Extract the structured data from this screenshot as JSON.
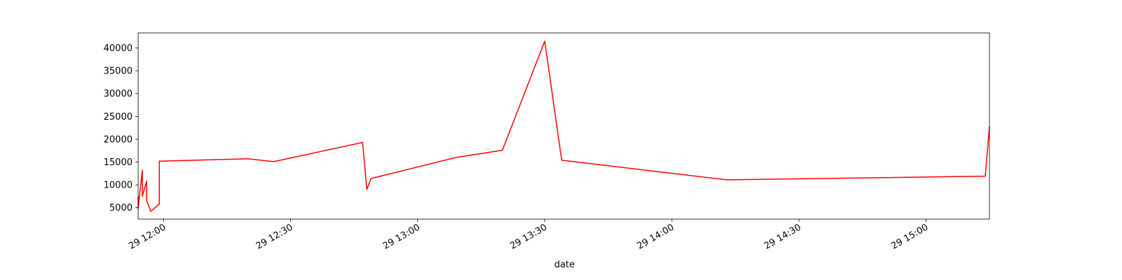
{
  "chart_data": {
    "type": "line",
    "title": "",
    "xlabel": "date",
    "ylabel": "",
    "grid": false,
    "legend": "none",
    "xlim": [
      "11:54",
      "15:15"
    ],
    "ylim": [
      2500,
      43300
    ],
    "y_ticks": [
      5000,
      10000,
      15000,
      20000,
      25000,
      30000,
      35000,
      40000
    ],
    "x_ticks": [
      {
        "time": "12:00",
        "label": "29 12:00"
      },
      {
        "time": "12:30",
        "label": "29 12:30"
      },
      {
        "time": "13:00",
        "label": "29 13:00"
      },
      {
        "time": "13:30",
        "label": "29 13:30"
      },
      {
        "time": "14:00",
        "label": "29 14:00"
      },
      {
        "time": "14:30",
        "label": "29 14:30"
      },
      {
        "time": "15:00",
        "label": "29 15:00"
      }
    ],
    "series": [
      {
        "color": "#ff0000",
        "points": [
          [
            "11:54",
            7500
          ],
          [
            "11:54",
            4800
          ],
          [
            "11:55",
            13200
          ],
          [
            "11:55",
            7500
          ],
          [
            "11:56",
            10800
          ],
          [
            "11:56",
            6500
          ],
          [
            "11:57",
            4200
          ],
          [
            "11:59",
            5800
          ],
          [
            "11:59",
            15200
          ],
          [
            "12:20",
            15700
          ],
          [
            "12:26",
            15100
          ],
          [
            "12:47",
            19300
          ],
          [
            "12:48",
            9000
          ],
          [
            "12:49",
            11400
          ],
          [
            "13:09",
            16000
          ],
          [
            "13:20",
            17600
          ],
          [
            "13:30",
            41500
          ],
          [
            "13:34",
            15400
          ],
          [
            "14:13",
            11100
          ],
          [
            "15:14",
            11900
          ],
          [
            "15:15",
            22800
          ]
        ]
      }
    ]
  }
}
